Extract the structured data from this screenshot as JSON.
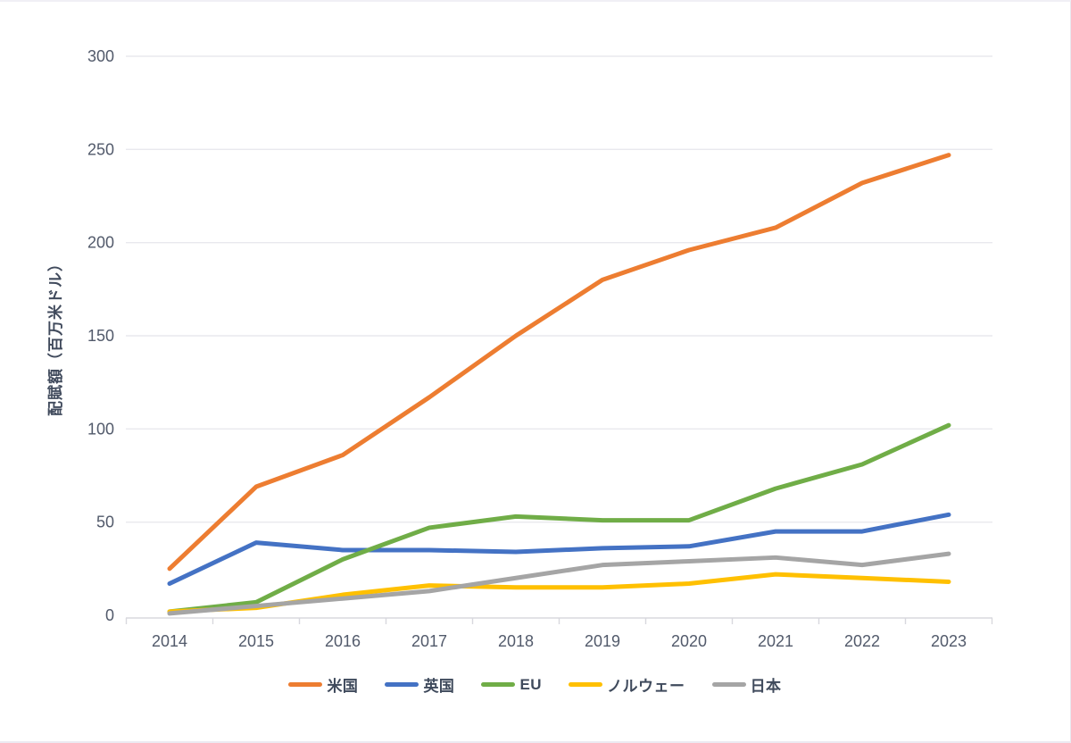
{
  "chart_data": {
    "type": "line",
    "x": [
      "2014",
      "2015",
      "2016",
      "2017",
      "2018",
      "2019",
      "2020",
      "2021",
      "2022",
      "2023"
    ],
    "series": [
      {
        "name": "米国",
        "color": "#ED7D31",
        "values": [
          25,
          69,
          86,
          117,
          150,
          180,
          196,
          208,
          232,
          247
        ]
      },
      {
        "name": "英国",
        "color": "#4472C4",
        "values": [
          17,
          39,
          35,
          35,
          34,
          36,
          37,
          45,
          45,
          54
        ]
      },
      {
        "name": "EU",
        "color": "#70AD47",
        "values": [
          2,
          7,
          30,
          47,
          53,
          51,
          51,
          68,
          81,
          102
        ]
      },
      {
        "name": "ノルウェー",
        "color": "#FFC000",
        "values": [
          2,
          4,
          11,
          16,
          15,
          15,
          17,
          22,
          20,
          18
        ]
      },
      {
        "name": "日本",
        "color": "#A5A5A5",
        "values": [
          1,
          5,
          9,
          13,
          20,
          27,
          29,
          31,
          27,
          33
        ]
      }
    ],
    "title": "",
    "xlabel": "",
    "ylabel": "配賦額（百万米ドル）",
    "ylim": [
      0,
      300
    ],
    "y_ticks": [
      0,
      50,
      100,
      150,
      200,
      250,
      300
    ],
    "grid": true,
    "legend_position": "bottom"
  },
  "style": {
    "grid_color": "#E9E9EE",
    "axis_color": "#D8D8DE",
    "tick_label_color": "#525A6B",
    "axis_title_color": "#404A5C",
    "background": "#FFFFFF"
  }
}
